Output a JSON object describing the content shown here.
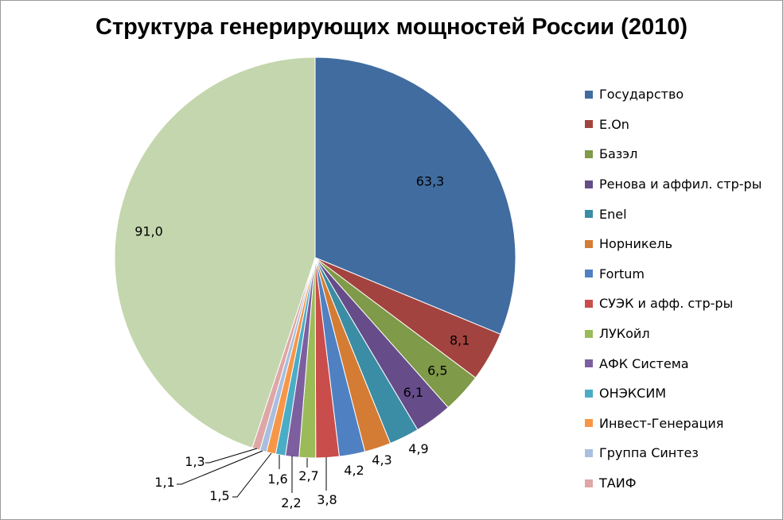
{
  "chart_data": {
    "type": "pie",
    "title": "Структура генерирующих мощностей России (2010)",
    "legend_position": "right",
    "slices": [
      {
        "label": "Государство",
        "value": 63.3,
        "display": "63,3",
        "color": "#406ca0"
      },
      {
        "label": "E.On",
        "value": 8.1,
        "display": "8,1",
        "color": "#a3433f"
      },
      {
        "label": "Базэл",
        "value": 6.5,
        "display": "6,5",
        "color": "#7f9a48"
      },
      {
        "label": "Ренова и аффил. стр-ры",
        "value": 6.1,
        "display": "6,1",
        "color": "#664d89"
      },
      {
        "label": "Enel",
        "value": 4.9,
        "display": "4,9",
        "color": "#3a8da4"
      },
      {
        "label": "Норникель",
        "value": 4.3,
        "display": "4,3",
        "color": "#d47c34"
      },
      {
        "label": "Fortum",
        "value": 4.2,
        "display": "4,2",
        "color": "#4f81c2"
      },
      {
        "label": "СУЭК и афф. стр-ры",
        "value": 3.8,
        "display": "3,8",
        "color": "#c94d4a"
      },
      {
        "label": "ЛУКойл",
        "value": 2.7,
        "display": "2,7",
        "color": "#9bbb59"
      },
      {
        "label": "АФК Система",
        "value": 2.2,
        "display": "2,2",
        "color": "#7d5fa0"
      },
      {
        "label": "ОНЭКСИМ",
        "value": 1.6,
        "display": "1,6",
        "color": "#4bacc6"
      },
      {
        "label": "Инвест-Генерация",
        "value": 1.5,
        "display": "1,5",
        "color": "#f79646"
      },
      {
        "label": "Группа Синтез",
        "value": 1.1,
        "display": "1,1",
        "color": "#a9bfe0"
      },
      {
        "label": "ТАИФ",
        "value": 1.3,
        "display": "1,3",
        "color": "#dea7a6"
      },
      {
        "label": "",
        "value": 91.0,
        "display": "91,0",
        "color": "#c4d6ad"
      }
    ]
  }
}
